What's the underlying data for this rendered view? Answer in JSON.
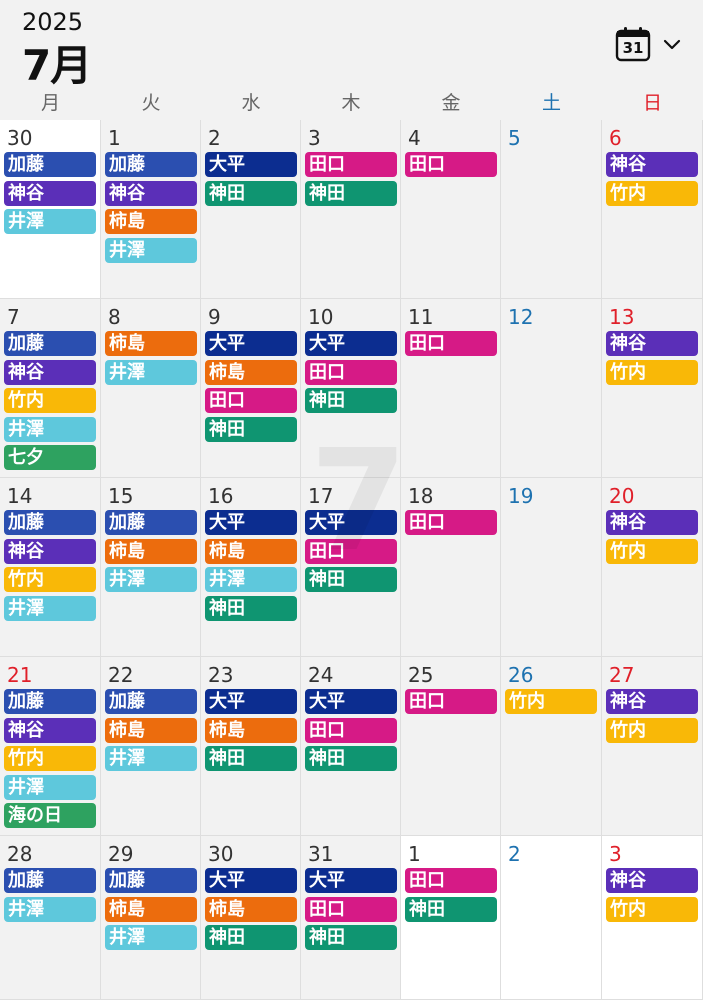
{
  "header": {
    "year": "2025",
    "month": "7月",
    "calendar_icon_day": "31"
  },
  "weekdays": [
    "月",
    "火",
    "水",
    "木",
    "金",
    "土",
    "日"
  ],
  "watermark": "7",
  "colors": {
    "加藤": "#2b4fb0",
    "神谷": "#5b2fb8",
    "井澤": "#5ec8dc",
    "柿島": "#ec6c0d",
    "大平": "#0c2d90",
    "神田": "#0f9571",
    "田口": "#d61a86",
    "竹内": "#f9b807",
    "七夕": "#2ea260",
    "海の日": "#2ea260"
  },
  "weeks": [
    [
      {
        "day": "30",
        "white": true,
        "events": [
          "加藤",
          "神谷",
          "井澤"
        ]
      },
      {
        "day": "1",
        "events": [
          "加藤",
          "神谷",
          "柿島",
          "井澤"
        ]
      },
      {
        "day": "2",
        "events": [
          "大平",
          "神田"
        ]
      },
      {
        "day": "3",
        "events": [
          "田口",
          "神田"
        ]
      },
      {
        "day": "4",
        "events": [
          "田口"
        ]
      },
      {
        "day": "5",
        "events": []
      },
      {
        "day": "6",
        "events": [
          "神谷",
          "竹内"
        ]
      }
    ],
    [
      {
        "day": "7",
        "events": [
          "加藤",
          "神谷",
          "竹内",
          "井澤",
          "七夕"
        ]
      },
      {
        "day": "8",
        "events": [
          "柿島",
          "井澤"
        ]
      },
      {
        "day": "9",
        "events": [
          "大平",
          "柿島",
          "田口",
          "神田"
        ]
      },
      {
        "day": "10",
        "events": [
          "大平",
          "田口",
          "神田"
        ]
      },
      {
        "day": "11",
        "events": [
          "田口"
        ]
      },
      {
        "day": "12",
        "events": []
      },
      {
        "day": "13",
        "events": [
          "神谷",
          "竹内"
        ]
      }
    ],
    [
      {
        "day": "14",
        "events": [
          "加藤",
          "神谷",
          "竹内",
          "井澤"
        ]
      },
      {
        "day": "15",
        "events": [
          "加藤",
          "柿島",
          "井澤"
        ]
      },
      {
        "day": "16",
        "events": [
          "大平",
          "柿島",
          "井澤",
          "神田"
        ]
      },
      {
        "day": "17",
        "events": [
          "大平",
          "田口",
          "神田"
        ]
      },
      {
        "day": "18",
        "events": [
          "田口"
        ]
      },
      {
        "day": "19",
        "events": []
      },
      {
        "day": "20",
        "events": [
          "神谷",
          "竹内"
        ]
      }
    ],
    [
      {
        "day": "21",
        "holiday": true,
        "events": [
          "加藤",
          "神谷",
          "竹内",
          "井澤",
          "海の日"
        ]
      },
      {
        "day": "22",
        "events": [
          "加藤",
          "柿島",
          "井澤"
        ]
      },
      {
        "day": "23",
        "events": [
          "大平",
          "柿島",
          "神田"
        ]
      },
      {
        "day": "24",
        "events": [
          "大平",
          "田口",
          "神田"
        ]
      },
      {
        "day": "25",
        "events": [
          "田口"
        ]
      },
      {
        "day": "26",
        "events": [
          "竹内"
        ]
      },
      {
        "day": "27",
        "events": [
          "神谷",
          "竹内"
        ]
      }
    ],
    [
      {
        "day": "28",
        "events": [
          "加藤",
          "井澤"
        ]
      },
      {
        "day": "29",
        "events": [
          "加藤",
          "柿島",
          "井澤"
        ]
      },
      {
        "day": "30",
        "events": [
          "大平",
          "柿島",
          "神田"
        ]
      },
      {
        "day": "31",
        "events": [
          "大平",
          "田口",
          "神田"
        ]
      },
      {
        "day": "1",
        "white": true,
        "events": [
          "田口",
          "神田"
        ]
      },
      {
        "day": "2",
        "white": true,
        "events": []
      },
      {
        "day": "3",
        "white": true,
        "events": [
          "神谷",
          "竹内"
        ]
      }
    ]
  ]
}
